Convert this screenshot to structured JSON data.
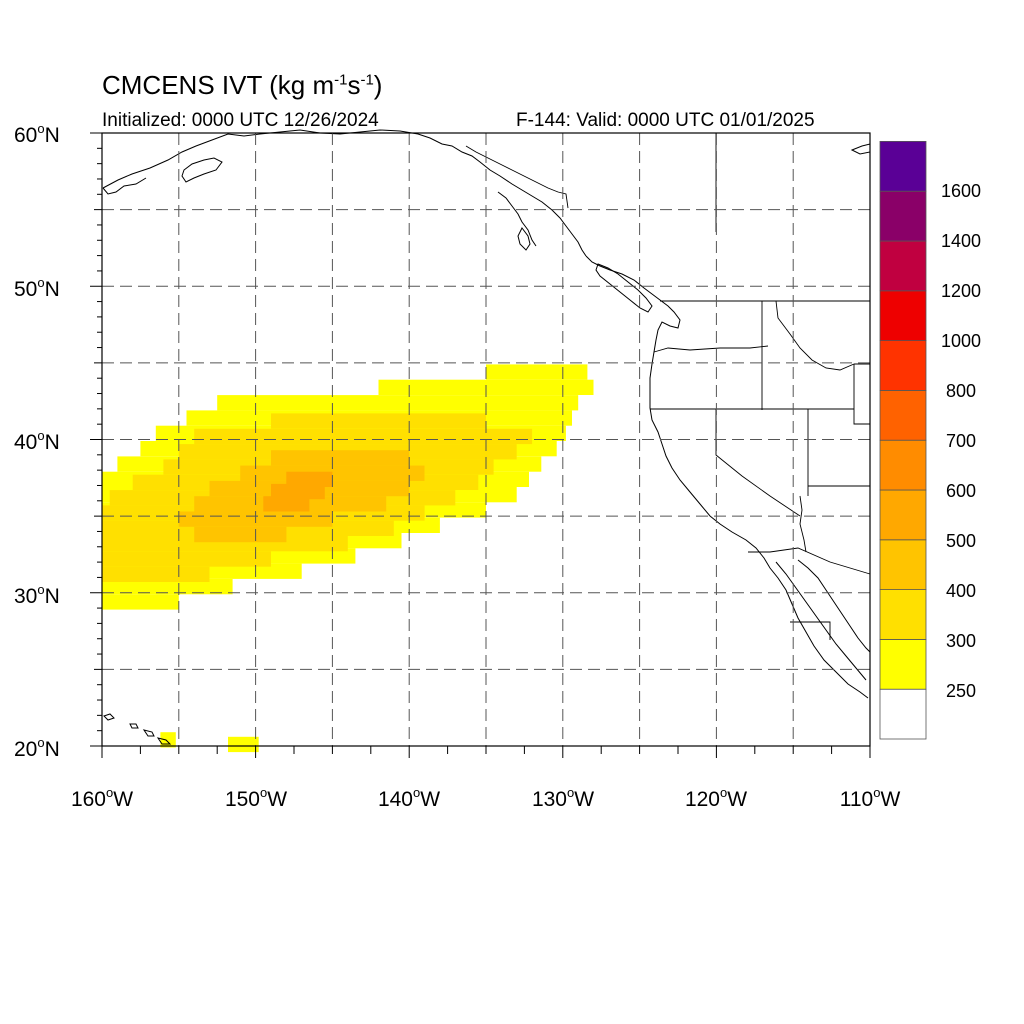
{
  "map": {
    "title_main": "CMCENS IVT (kg m",
    "title_exp1": "-1",
    "title_mid": "s",
    "title_exp2": "-1",
    "title_end": ")",
    "subtitle_left": "Initialized: 0000 UTC 12/26/2024",
    "subtitle_right": "F-144: Valid: 0000 UTC 01/01/2025",
    "lat_labels": [
      "60",
      "50",
      "40",
      "30",
      "20"
    ],
    "lat_suffix": "N",
    "lon_labels": [
      "160",
      "150",
      "140",
      "130",
      "120",
      "110"
    ],
    "lon_suffix": "W",
    "degree_symbol": "o"
  },
  "colorbar": {
    "labels": [
      "250",
      "300",
      "400",
      "500",
      "600",
      "700",
      "800",
      "1000",
      "1200",
      "1400",
      "1600"
    ],
    "colors": [
      "#ffffff",
      "#ffff00",
      "#ffe000",
      "#ffc400",
      "#ffa800",
      "#ff8c00",
      "#ff6200",
      "#ff3300",
      "#ee0000",
      "#c00040",
      "#8a0068",
      "#5a0096"
    ]
  },
  "ivt_field": {
    "units": "kg m-1 s-1",
    "lon_range": [
      -160,
      -110
    ],
    "lat_range": [
      20,
      60
    ],
    "rows": [
      {
        "lat": 44.4,
        "lon_min": -135.0,
        "lon_max": -128.4,
        "level": 1
      },
      {
        "lat": 43.4,
        "lon_min": -142.0,
        "lon_max": -128.0,
        "level": 1
      },
      {
        "lat": 42.4,
        "lon_min": -152.5,
        "lon_max": -129.0,
        "level": 1
      },
      {
        "lat": 41.4,
        "lon_min": -154.5,
        "lon_max": -129.4,
        "level": 1
      },
      {
        "lat": 40.4,
        "lon_min": -156.5,
        "lon_max": -129.8,
        "level": 1
      },
      {
        "lat": 39.4,
        "lon_min": -157.5,
        "lon_max": -130.4,
        "level": 1
      },
      {
        "lat": 38.4,
        "lon_min": -159.0,
        "lon_max": -131.4,
        "level": 1
      },
      {
        "lat": 37.4,
        "lon_min": -160.0,
        "lon_max": -132.2,
        "level": 1
      },
      {
        "lat": 36.4,
        "lon_min": -160.0,
        "lon_max": -133.0,
        "level": 1
      },
      {
        "lat": 35.4,
        "lon_min": -160.0,
        "lon_max": -135.0,
        "level": 1
      },
      {
        "lat": 34.4,
        "lon_min": -160.0,
        "lon_max": -138.0,
        "level": 1
      },
      {
        "lat": 33.4,
        "lon_min": -160.0,
        "lon_max": -140.5,
        "level": 1
      },
      {
        "lat": 32.4,
        "lon_min": -160.0,
        "lon_max": -143.5,
        "level": 1
      },
      {
        "lat": 31.4,
        "lon_min": -160.0,
        "lon_max": -147.0,
        "level": 1
      },
      {
        "lat": 30.4,
        "lon_min": -160.0,
        "lon_max": -151.5,
        "level": 1
      },
      {
        "lat": 29.4,
        "lon_min": -160.0,
        "lon_max": -155.0,
        "level": 1
      },
      {
        "lat": 41.2,
        "lon_min": -149.0,
        "lon_max": -135.0,
        "level": 2
      },
      {
        "lat": 40.2,
        "lon_min": -154.0,
        "lon_max": -132.0,
        "level": 2
      },
      {
        "lat": 39.2,
        "lon_min": -155.0,
        "lon_max": -133.0,
        "level": 2
      },
      {
        "lat": 38.2,
        "lon_min": -156.0,
        "lon_max": -134.5,
        "level": 2
      },
      {
        "lat": 37.2,
        "lon_min": -158.0,
        "lon_max": -135.5,
        "level": 2
      },
      {
        "lat": 36.2,
        "lon_min": -159.5,
        "lon_max": -137.0,
        "level": 2
      },
      {
        "lat": 35.2,
        "lon_min": -160.0,
        "lon_max": -139.0,
        "level": 2
      },
      {
        "lat": 34.2,
        "lon_min": -160.0,
        "lon_max": -141.0,
        "level": 2
      },
      {
        "lat": 33.2,
        "lon_min": -160.0,
        "lon_max": -144.0,
        "level": 2
      },
      {
        "lat": 32.2,
        "lon_min": -160.0,
        "lon_max": -149.0,
        "level": 2
      },
      {
        "lat": 31.2,
        "lon_min": -160.0,
        "lon_max": -153.0,
        "level": 2
      },
      {
        "lat": 38.8,
        "lon_min": -149.0,
        "lon_max": -140.0,
        "level": 3
      },
      {
        "lat": 37.8,
        "lon_min": -151.0,
        "lon_max": -139.0,
        "level": 3
      },
      {
        "lat": 36.8,
        "lon_min": -153.0,
        "lon_max": -140.0,
        "level": 3
      },
      {
        "lat": 35.8,
        "lon_min": -154.0,
        "lon_max": -141.5,
        "level": 3
      },
      {
        "lat": 34.8,
        "lon_min": -155.0,
        "lon_max": -145.0,
        "level": 3
      },
      {
        "lat": 33.8,
        "lon_min": -154.0,
        "lon_max": -148.0,
        "level": 3
      },
      {
        "lat": 37.4,
        "lon_min": -148.0,
        "lon_max": -145.0,
        "level": 4
      },
      {
        "lat": 36.6,
        "lon_min": -149.0,
        "lon_max": -145.5,
        "level": 4
      },
      {
        "lat": 35.8,
        "lon_min": -149.5,
        "lon_max": -146.5,
        "level": 4
      },
      {
        "lat": 20.4,
        "lon_min": -156.2,
        "lon_max": -155.2,
        "level": 1
      },
      {
        "lat": 20.1,
        "lon_min": -151.8,
        "lon_max": -149.8,
        "level": 1
      }
    ]
  }
}
